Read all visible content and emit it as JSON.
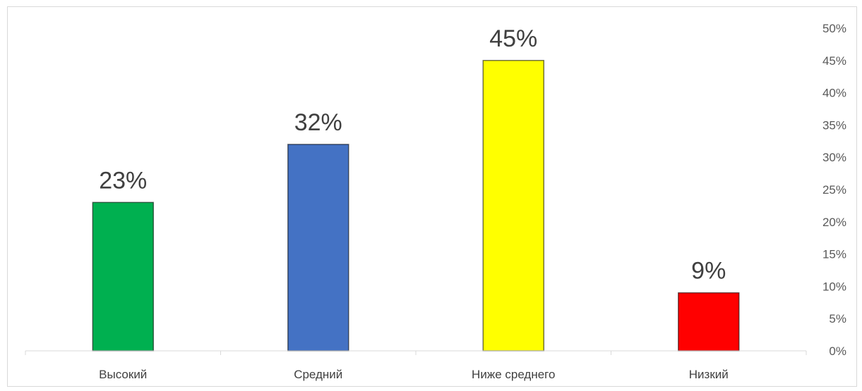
{
  "chart_data": {
    "type": "bar",
    "categories": [
      "Высокий",
      "Средний",
      "Ниже среднего",
      "Низкий"
    ],
    "values": [
      23,
      32,
      45,
      9
    ],
    "data_labels": [
      "23%",
      "32%",
      "45%",
      "9%"
    ],
    "colors": [
      "#00b050",
      "#4472c4",
      "#ffff00",
      "#ff0000"
    ],
    "ylim": [
      0,
      50
    ],
    "y_ticks": [
      "0%",
      "5%",
      "10%",
      "15%",
      "20%",
      "25%",
      "30%",
      "35%",
      "40%",
      "45%",
      "50%"
    ],
    "y_axis_position": "right",
    "grid": false,
    "legend": "none"
  }
}
